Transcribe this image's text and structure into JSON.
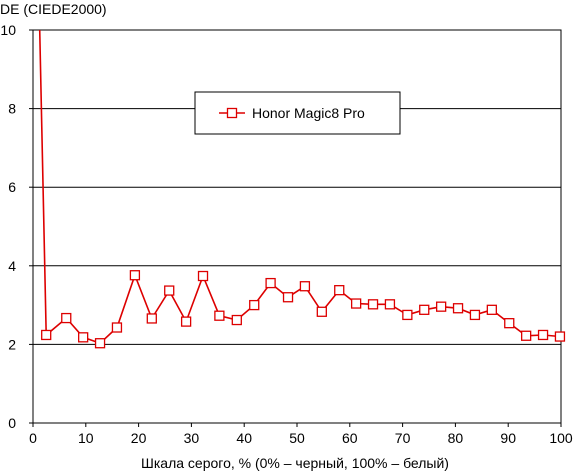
{
  "chart_data": {
    "type": "line",
    "ylabel": "DE (CIEDE2000)",
    "xlabel": "Шкала серого, % (0% – черный, 100% – белый)",
    "xlim": [
      0,
      100
    ],
    "ylim": [
      0,
      10
    ],
    "xticks": [
      0,
      10,
      20,
      30,
      40,
      50,
      60,
      70,
      80,
      90,
      100
    ],
    "yticks": [
      0,
      2,
      4,
      6,
      8,
      10
    ],
    "grid": "horizontal",
    "legend_position": "upper-center",
    "series": [
      {
        "name": "Honor Magic8 Pro",
        "color": "#dd0000",
        "marker": "open-square",
        "x": [
          1.2,
          2.5,
          6.3,
          9.5,
          12.7,
          15.9,
          19.3,
          22.5,
          25.8,
          29.0,
          32.2,
          35.3,
          38.6,
          41.9,
          45.0,
          48.3,
          51.5,
          54.7,
          58.0,
          61.2,
          64.4,
          67.6,
          70.9,
          74.1,
          77.3,
          80.5,
          83.7,
          86.9,
          90.2,
          93.4,
          96.6,
          99.8
        ],
        "y": [
          10.5,
          2.24,
          2.67,
          2.18,
          2.03,
          2.43,
          3.76,
          2.66,
          3.37,
          2.58,
          3.74,
          2.73,
          2.62,
          3.0,
          3.56,
          3.2,
          3.48,
          2.83,
          3.38,
          3.04,
          3.02,
          3.02,
          2.75,
          2.88,
          2.96,
          2.92,
          2.75,
          2.88,
          2.54,
          2.22,
          2.24,
          2.2
        ]
      }
    ]
  }
}
